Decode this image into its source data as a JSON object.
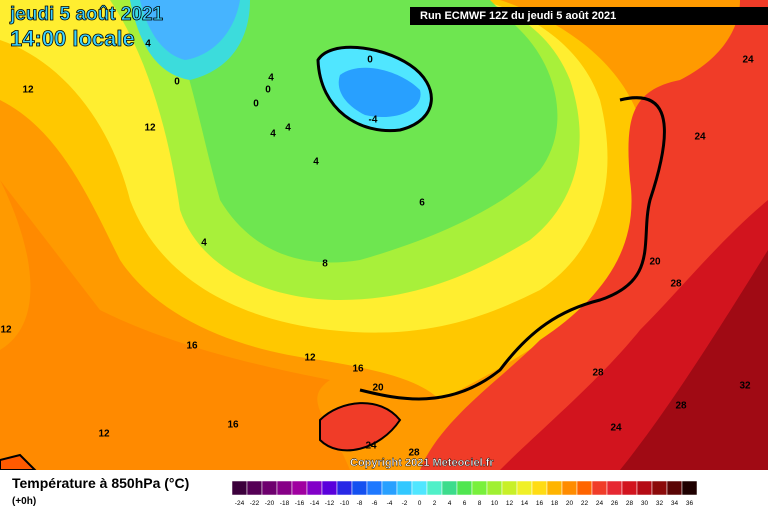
{
  "header": {
    "title_date": "jeudi 5 août 2021",
    "title_time": "14:00 locale",
    "run": "Run ECMWF 12Z du jeudi 5 août 2021",
    "copyright": "Copyright 2021 Meteociel.fr"
  },
  "legend": {
    "title": "Température à 850hPa (°C)",
    "step": "(+0h)",
    "labels": [
      -24,
      -22,
      -20,
      -18,
      -16,
      -14,
      -12,
      -10,
      -8,
      -6,
      -4,
      -2,
      0,
      2,
      4,
      6,
      8,
      10,
      12,
      14,
      16,
      18,
      20,
      22,
      24,
      26,
      28,
      30,
      32,
      34,
      36
    ],
    "colors": [
      "#3c003c",
      "#550055",
      "#6e006e",
      "#870087",
      "#a000a0",
      "#8200c8",
      "#5a00dc",
      "#2828e6",
      "#1450f0",
      "#1e78ff",
      "#28a0ff",
      "#32c8ff",
      "#50e6ff",
      "#50f0c8",
      "#3cdc8c",
      "#50e650",
      "#78f03c",
      "#a0f032",
      "#c8f028",
      "#f0f028",
      "#ffdc14",
      "#ffb400",
      "#ff8c00",
      "#ff6400",
      "#f03c28",
      "#e62832",
      "#d2141e",
      "#b40a14",
      "#8c0a0a",
      "#5a0505",
      "#1e0000"
    ]
  },
  "contours": [
    "4",
    "0",
    "12",
    "12",
    "0",
    "-4",
    "0",
    "0",
    "4",
    "4",
    "4",
    "4",
    "6",
    "4",
    "8",
    "24",
    "24",
    "20",
    "28",
    "16",
    "12",
    "16",
    "20",
    "28",
    "32",
    "28",
    "24",
    "16",
    "12",
    "24",
    "28",
    "12"
  ]
}
